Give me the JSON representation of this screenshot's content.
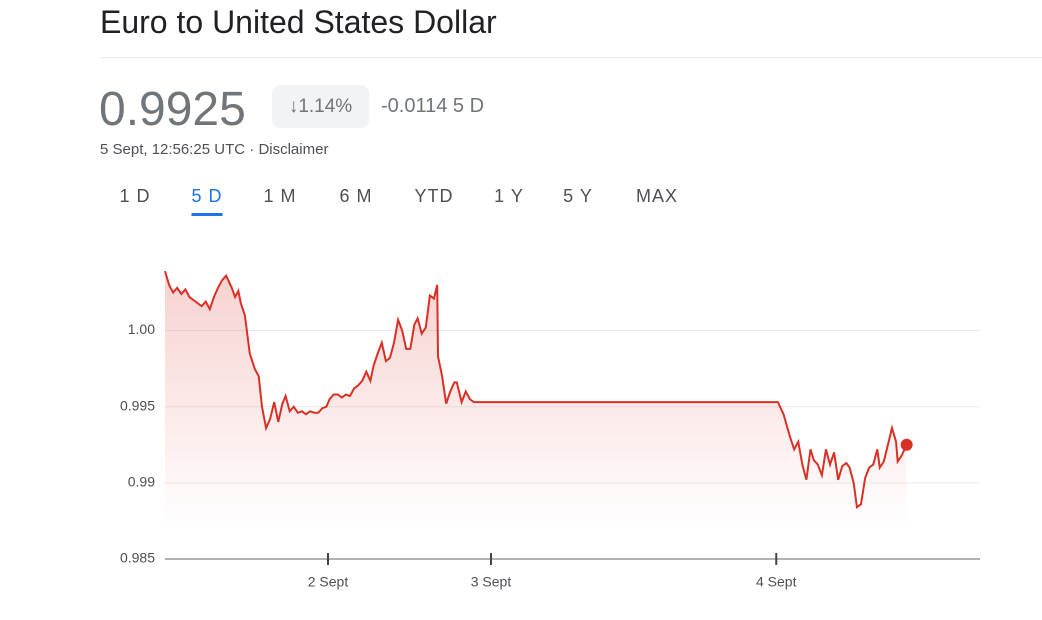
{
  "header": {
    "title": "Euro to United States Dollar"
  },
  "quote": {
    "price": "0.9925",
    "change_percent": "↓1.14%",
    "change": "-0.0114",
    "period": "5 D",
    "timestamp": "5 Sept, 12:56:25 UTC",
    "separator": "·",
    "disclaimer": "Disclaimer"
  },
  "tabs": {
    "items": [
      "1 D",
      "5 D",
      "1 M",
      "6 M",
      "YTD",
      "1 Y",
      "5 Y",
      "MAX"
    ],
    "selected": 1
  },
  "chart_data": {
    "type": "line",
    "color": "#d93025",
    "grid": true,
    "xlim": [
      0,
      100
    ],
    "ylim": [
      0.985,
      1.0045
    ],
    "xticks": [
      {
        "value": 20,
        "label": "2 Sept"
      },
      {
        "value": 40,
        "label": "3 Sept"
      },
      {
        "value": 75,
        "label": "4 Sept"
      }
    ],
    "yticks": [
      {
        "value": 1,
        "label": "1.00"
      },
      0.995,
      0.99,
      0.985
    ],
    "x": [
      0,
      0.5,
      1,
      1.5,
      2,
      2.5,
      3,
      4,
      4.5,
      5,
      5.5,
      6,
      6.5,
      7,
      7.5,
      8.2,
      8.6,
      9,
      9.3,
      9.8,
      10.4,
      11,
      11.5,
      11.9,
      12.4,
      12.9,
      13.4,
      13.9,
      14.4,
      14.8,
      15.3,
      15.8,
      16.3,
      16.8,
      17.3,
      17.8,
      18.3,
      18.8,
      19.3,
      19.8,
      20.2,
      20.7,
      21.2,
      21.7,
      22.2,
      22.7,
      23.2,
      23.7,
      24.2,
      24.7,
      25.2,
      25.6,
      26.1,
      26.6,
      27.1,
      27.6,
      28.1,
      28.6,
      29.1,
      29.6,
      30.1,
      30.6,
      31,
      31.5,
      32,
      32.5,
      33,
      33.4,
      33.5,
      34,
      34.5,
      35,
      35.5,
      35.8,
      36.4,
      36.9,
      37.4,
      37.9,
      75.2,
      75.9,
      76.7,
      77.2,
      77.7,
      78.2,
      78.7,
      79.2,
      79.6,
      80.1,
      80.6,
      81.1,
      81.6,
      82.1,
      82.6,
      83.1,
      83.6,
      84,
      84.5,
      84.9,
      85.4,
      85.9,
      86.4,
      86.9,
      87.4,
      87.7,
      88.2,
      88.7,
      89.2,
      89.7,
      89.9,
      90.4,
      91
    ],
    "values": [
      1.0039,
      1.003,
      1.0025,
      1.0028,
      1.0024,
      1.0027,
      1.0022,
      1.0018,
      1.0016,
      1.0019,
      1.0014,
      1.0022,
      1.0028,
      1.0033,
      1.0036,
      1.0028,
      1.0022,
      1.0026,
      1.0018,
      1.001,
      0.9985,
      0.9975,
      0.997,
      0.995,
      0.9936,
      0.9942,
      0.9953,
      0.994,
      0.9952,
      0.9957,
      0.9947,
      0.995,
      0.9946,
      0.9947,
      0.9945,
      0.9947,
      0.9946,
      0.9946,
      0.9949,
      0.995,
      0.9955,
      0.9958,
      0.9958,
      0.9956,
      0.9958,
      0.9957,
      0.9962,
      0.9964,
      0.9967,
      0.9973,
      0.9967,
      0.9977,
      0.9985,
      0.9992,
      0.998,
      0.9982,
      0.9992,
      1.0007,
      1,
      0.9988,
      0.9988,
      1.0004,
      1.0008,
      0.9998,
      1.0002,
      1.0023,
      1.0021,
      1.003,
      0.9983,
      0.997,
      0.9952,
      0.996,
      0.9966,
      0.9966,
      0.9953,
      0.996,
      0.9955,
      0.9953,
      0.9953,
      0.9945,
      0.993,
      0.9922,
      0.9927,
      0.9912,
      0.9902,
      0.9922,
      0.9915,
      0.9912,
      0.9905,
      0.9922,
      0.9912,
      0.992,
      0.9902,
      0.9911,
      0.9913,
      0.991,
      0.99,
      0.9884,
      0.9886,
      0.9903,
      0.991,
      0.9912,
      0.9922,
      0.991,
      0.9914,
      0.9925,
      0.9936,
      0.9927,
      0.9914,
      0.9918,
      0.9925
    ]
  }
}
